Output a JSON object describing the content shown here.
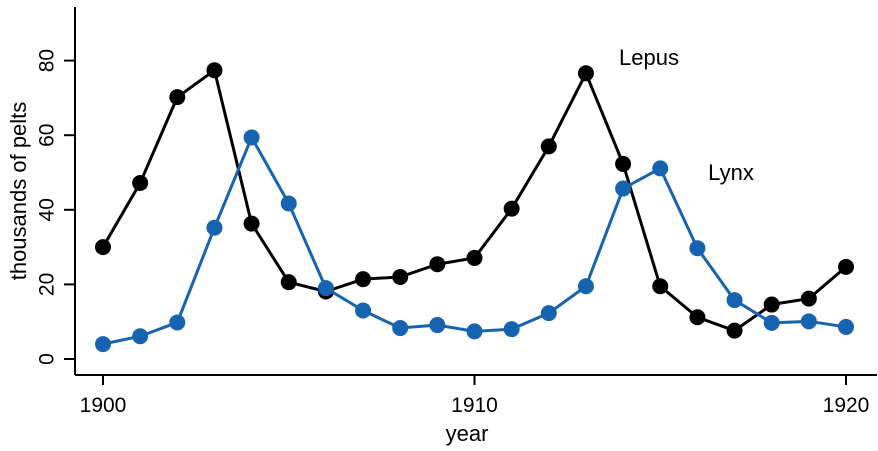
{
  "chart_data": {
    "type": "line",
    "title": "",
    "xlabel": "year",
    "ylabel": "thousands of pelts",
    "x": [
      1900,
      1901,
      1902,
      1903,
      1904,
      1905,
      1906,
      1907,
      1908,
      1909,
      1910,
      1911,
      1912,
      1913,
      1914,
      1915,
      1916,
      1917,
      1918,
      1919,
      1920
    ],
    "series": [
      {
        "name": "Lepus",
        "color": "#000000",
        "values": [
          30.0,
          47.2,
          70.2,
          77.4,
          36.3,
          20.6,
          18.1,
          21.4,
          22.0,
          25.4,
          27.1,
          40.3,
          57.0,
          76.6,
          52.3,
          19.5,
          11.2,
          7.6,
          14.6,
          16.2,
          24.7
        ]
      },
      {
        "name": "Lynx",
        "color": "#1663af",
        "values": [
          4.0,
          6.1,
          9.8,
          35.2,
          59.4,
          41.7,
          19.0,
          13.0,
          8.3,
          9.1,
          7.4,
          8.0,
          12.3,
          19.5,
          45.7,
          51.1,
          29.7,
          15.8,
          9.7,
          10.1,
          8.6
        ]
      }
    ],
    "xticks": [
      1900,
      1910,
      1920
    ],
    "yticks": [
      0,
      20,
      40,
      60,
      80
    ],
    "xlim": [
      1900,
      1920
    ],
    "ylim": [
      0,
      90
    ],
    "grid": "off",
    "legend_position": "inline-annotations",
    "marker": "filled-circle",
    "axis_color": "#000000"
  }
}
